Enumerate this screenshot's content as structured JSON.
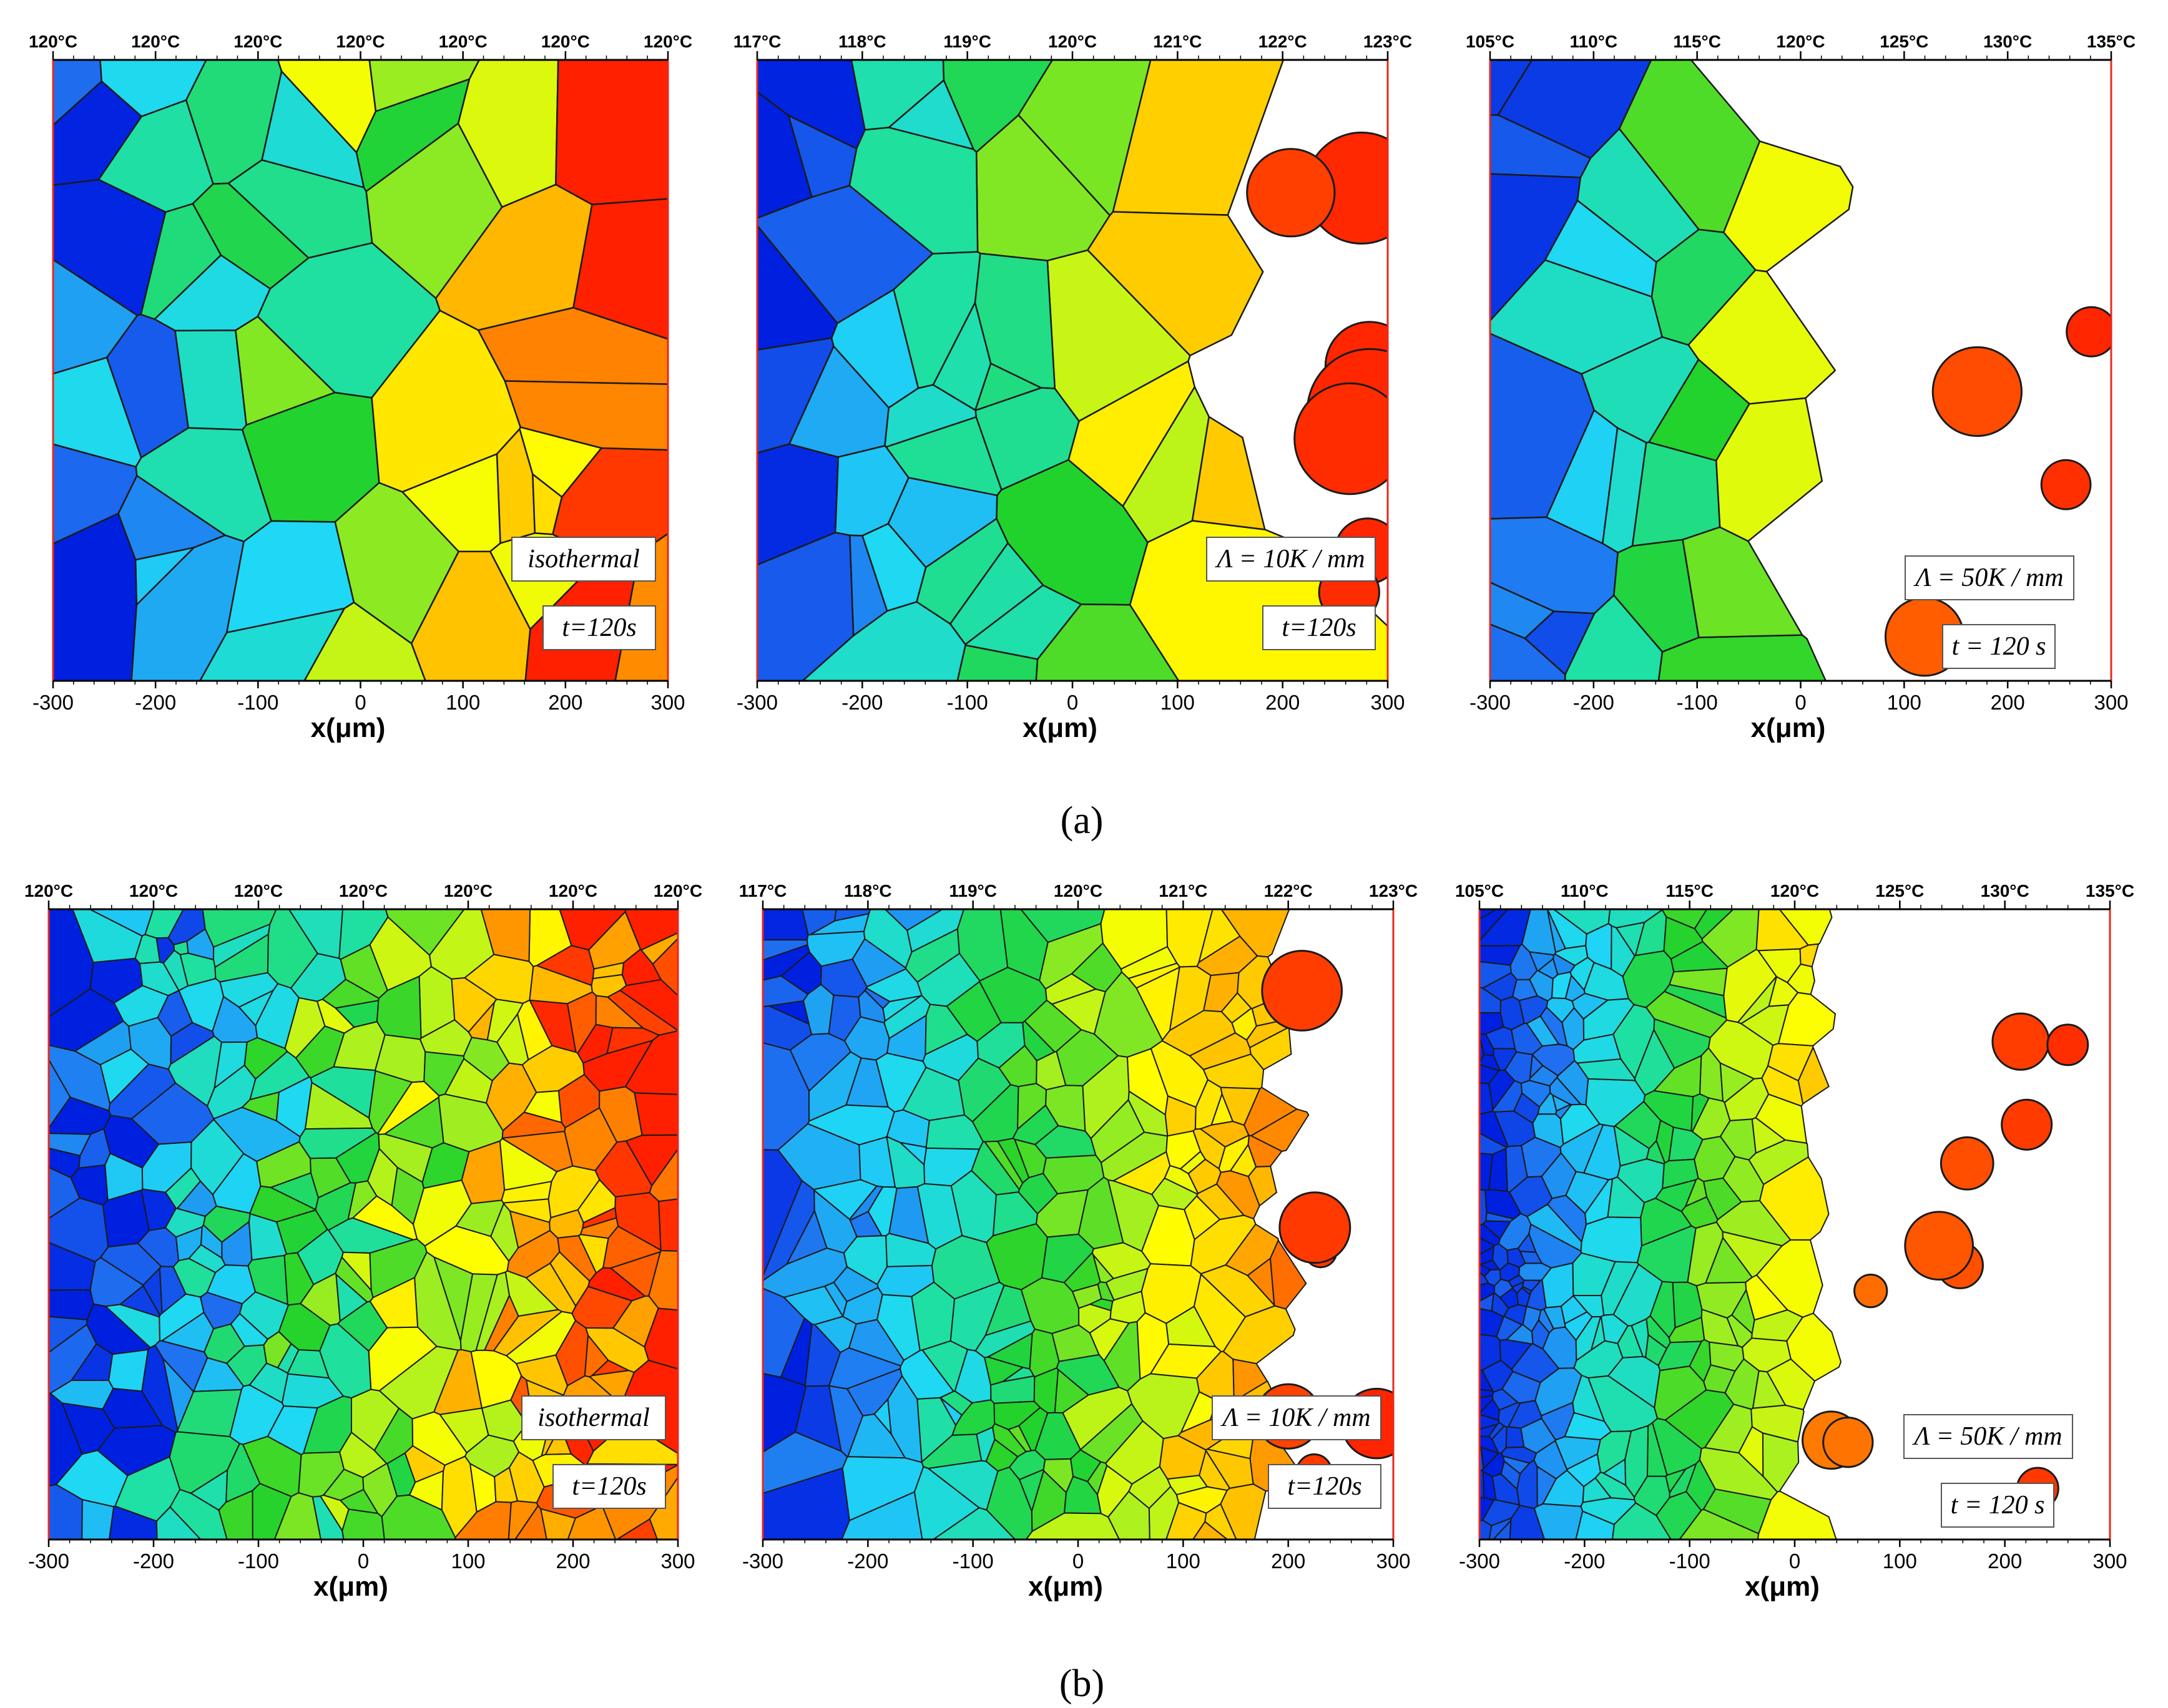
{
  "figure": {
    "captions": [
      "(a)",
      "(b)"
    ],
    "x_axis_label": "x(μm)",
    "x_ticks": [
      "-300",
      "-200",
      "-100",
      "0",
      "100",
      "200",
      "300"
    ],
    "top_temperature_scales": {
      "isothermal": [
        "120°C",
        "120°C",
        "120°C",
        "120°C",
        "120°C",
        "120°C",
        "120°C"
      ],
      "gradient_10": [
        "117°C",
        "118°C",
        "119°C",
        "120°C",
        "121°C",
        "122°C",
        "123°C"
      ],
      "gradient_50": [
        "105°C",
        "110°C",
        "115°C",
        "120°C",
        "125°C",
        "130°C",
        "135°C"
      ]
    },
    "legends": {
      "isothermal": "isothermal",
      "gradient_10": "Λ = 10K / mm",
      "gradient_50": "Λ = 50K / mm",
      "time_regular": "t=120s",
      "time_spaced": "t = 120 s"
    },
    "panels": [
      {
        "row": "a",
        "condition": "isothermal",
        "grain_size": "coarse"
      },
      {
        "row": "a",
        "condition": "gradient_10",
        "grain_size": "coarse"
      },
      {
        "row": "a",
        "condition": "gradient_50",
        "grain_size": "coarse"
      },
      {
        "row": "b",
        "condition": "isothermal",
        "grain_size": "fine"
      },
      {
        "row": "b",
        "condition": "gradient_10",
        "grain_size": "fine"
      },
      {
        "row": "b",
        "condition": "gradient_50",
        "grain_size": "fine"
      }
    ],
    "colors": {
      "frame": "#e8281e",
      "grain_boundary": "#1a1a1a",
      "colormap": [
        "#0020e0",
        "#1f70f0",
        "#1fd8f5",
        "#1fe0a0",
        "#22d22c",
        "#a8f020",
        "#ffff00",
        "#ffc000",
        "#ff7a00",
        "#ff2000"
      ]
    }
  }
}
